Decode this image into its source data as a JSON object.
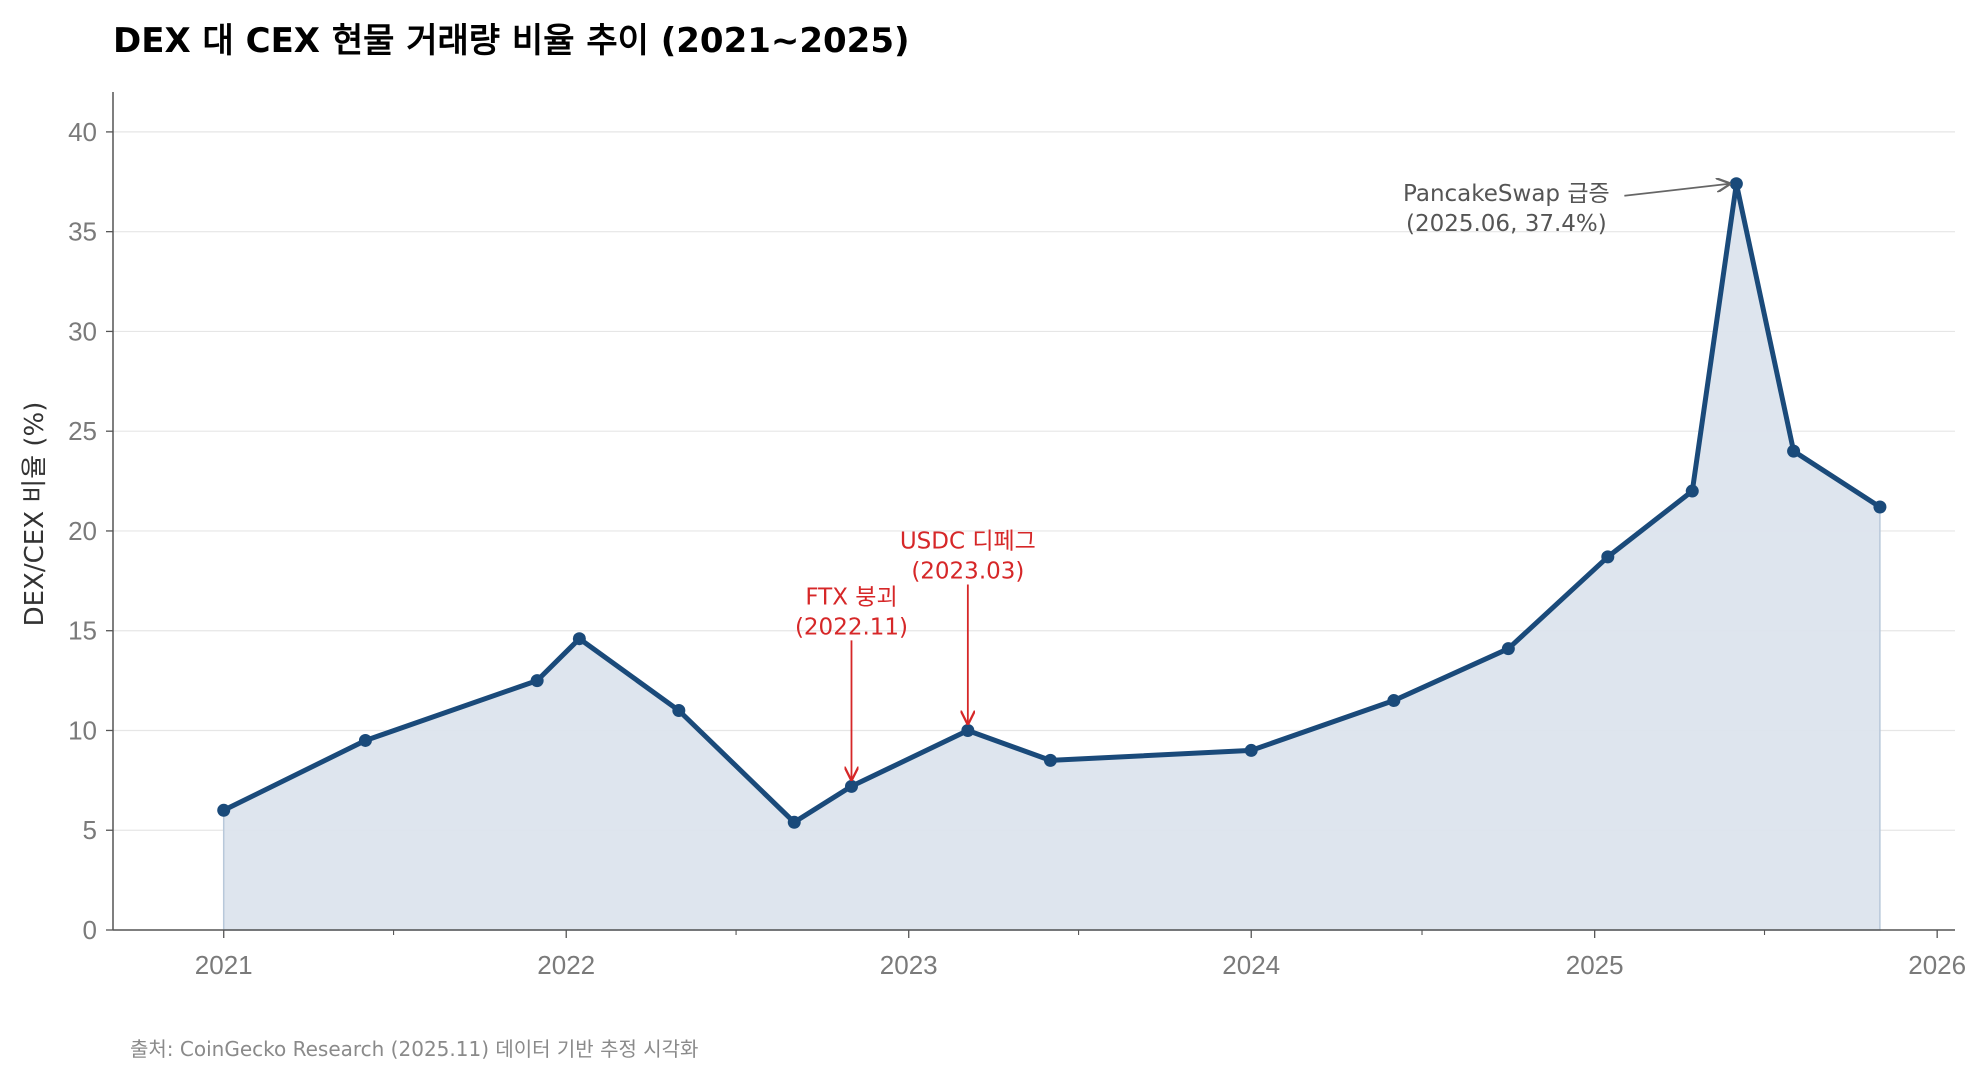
{
  "chart_data": {
    "type": "line",
    "title": "DEX 대 CEX 현물 거래량 비율 추이 (2021~2025)",
    "ylabel": "DEX/CEX 비율 (%)",
    "xlabel": "",
    "xlim": [
      "2020-09-05",
      "2026-01-20"
    ],
    "ylim": [
      0,
      42
    ],
    "x_ticks": [
      {
        "date": "2021-01-01",
        "label": "2021"
      },
      {
        "date": "2022-01-01",
        "label": "2022"
      },
      {
        "date": "2023-01-01",
        "label": "2023"
      },
      {
        "date": "2024-01-01",
        "label": "2024"
      },
      {
        "date": "2025-01-01",
        "label": "2025"
      },
      {
        "date": "2026-01-01",
        "label": "2026"
      }
    ],
    "x_minor_ticks": [
      "2021-07-01",
      "2022-07-01",
      "2023-07-01",
      "2024-07-01",
      "2025-07-01"
    ],
    "y_ticks": [
      0,
      5,
      10,
      15,
      20,
      25,
      30,
      35,
      40
    ],
    "grid": "y",
    "fill": true,
    "colors": {
      "line": "#1a4a7a",
      "fill": "#dce4ed",
      "annotation": "#d62728",
      "annotation_gray": "#666666"
    },
    "series": [
      {
        "x": [
          "2021-01-01",
          "2021-06-01",
          "2021-12-01",
          "2022-01-15",
          "2022-05-01",
          "2022-09-01",
          "2022-11-01",
          "2023-03-05",
          "2023-06-01",
          "2024-01-01",
          "2024-06-01",
          "2024-10-01",
          "2025-01-15",
          "2025-04-15",
          "2025-06-01",
          "2025-08-01",
          "2025-11-01"
        ],
        "y": [
          6.0,
          9.5,
          12.5,
          14.6,
          11.0,
          5.4,
          7.2,
          10.0,
          8.5,
          9.0,
          11.5,
          14.1,
          18.7,
          22.0,
          37.4,
          24.0,
          21.2
        ]
      }
    ],
    "annotations": [
      {
        "text_lines": [
          "FTX 붕괴",
          "(2022.11)"
        ],
        "point_index": 6,
        "color": "red"
      },
      {
        "text_lines": [
          "USDC 디페그",
          "(2023.03)"
        ],
        "point_index": 7,
        "color": "red"
      },
      {
        "text_lines": [
          "PancakeSwap 급증",
          "(2025.06, 37.4%)"
        ],
        "point_index": 14,
        "color": "gray"
      }
    ]
  },
  "footer": {
    "source": "출처: CoinGecko Research (2025.11) 데이터 기반 추정 시각화"
  }
}
